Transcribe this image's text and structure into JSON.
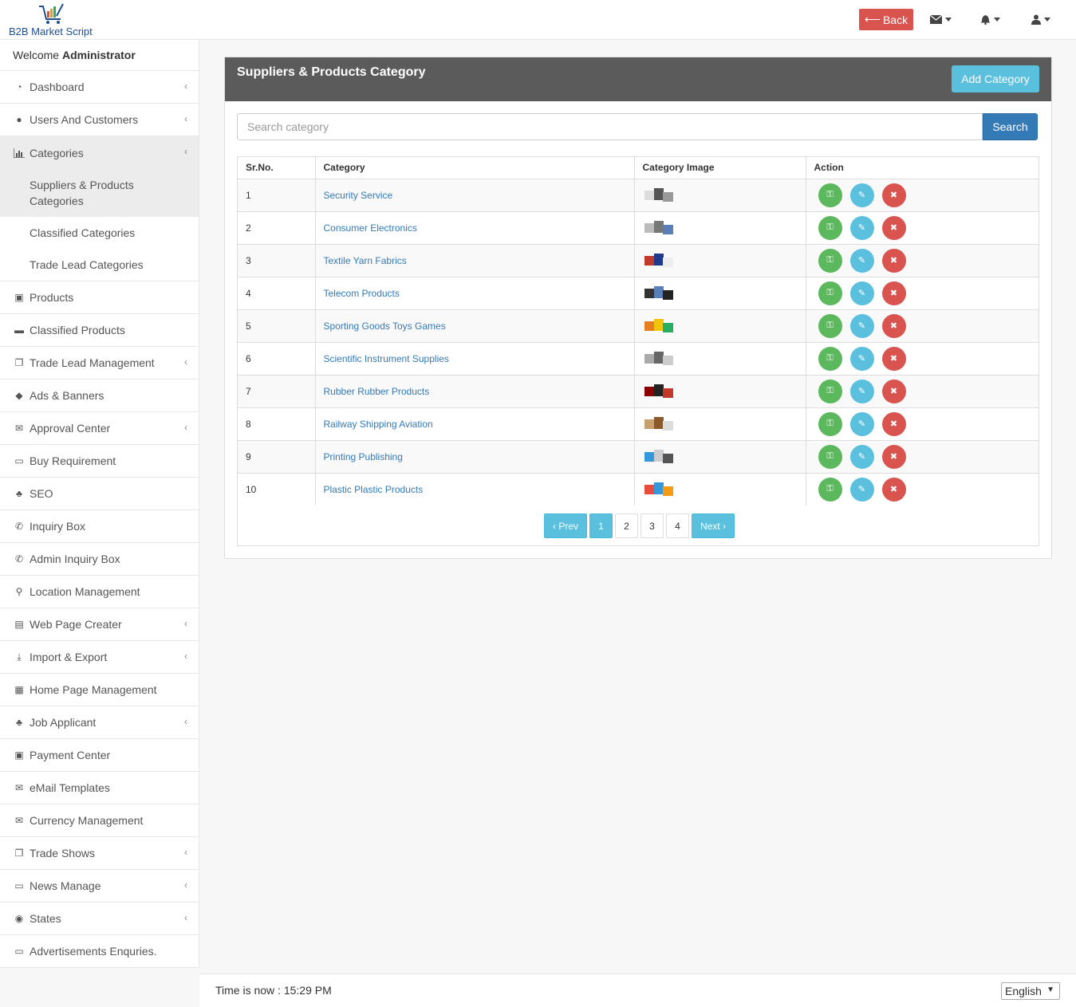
{
  "header": {
    "logo_text": "B2B Market Script",
    "back_label": "Back",
    "icons": [
      "envelope-icon",
      "bell-icon",
      "user-icon"
    ]
  },
  "sidebar": {
    "welcome_prefix": "Welcome",
    "welcome_user": "Administrator",
    "items_top": [
      {
        "label": "Dashboard",
        "icon": "dashboard-icon",
        "chevron": true
      },
      {
        "label": "Users And Customers",
        "icon": "user-icon",
        "chevron": true
      }
    ],
    "categories": {
      "label": "Categories",
      "icon": "bar-chart-icon",
      "sub": [
        "Suppliers & Products Categories",
        "Classified Categories",
        "Trade Lead Categories"
      ]
    },
    "items_bottom": [
      {
        "label": "Products",
        "icon": "briefcase-icon",
        "chevron": false
      },
      {
        "label": "Classified Products",
        "icon": "archive-icon",
        "chevron": false
      },
      {
        "label": "Trade Lead Management",
        "icon": "copy-icon",
        "chevron": true
      },
      {
        "label": "Ads & Banners",
        "icon": "tags-icon",
        "chevron": false
      },
      {
        "label": "Approval Center",
        "icon": "envelope-icon",
        "chevron": true
      },
      {
        "label": "Buy Requirement",
        "icon": "credit-card-icon",
        "chevron": false
      },
      {
        "label": "SEO",
        "icon": "sitemap-icon",
        "chevron": false
      },
      {
        "label": "Inquiry Box",
        "icon": "phone-icon",
        "chevron": false
      },
      {
        "label": "Admin Inquiry Box",
        "icon": "phone-icon",
        "chevron": false
      },
      {
        "label": "Location Management",
        "icon": "map-marker-icon",
        "chevron": false
      },
      {
        "label": "Web Page Creater",
        "icon": "file-icon",
        "chevron": true
      },
      {
        "label": "Import & Export",
        "icon": "download-icon",
        "chevron": true
      },
      {
        "label": "Home Page Management",
        "icon": "table-icon",
        "chevron": false
      },
      {
        "label": "Job Applicant",
        "icon": "sitemap-icon",
        "chevron": true
      },
      {
        "label": "Payment Center",
        "icon": "money-icon",
        "chevron": false
      },
      {
        "label": "eMail Templates",
        "icon": "envelope-icon",
        "chevron": false
      },
      {
        "label": "Currency Management",
        "icon": "envelope-icon",
        "chevron": false
      },
      {
        "label": "Trade Shows",
        "icon": "copy-icon",
        "chevron": true
      },
      {
        "label": "News Manage",
        "icon": "desktop-icon",
        "chevron": true
      },
      {
        "label": "States",
        "icon": "eye-icon",
        "chevron": true
      },
      {
        "label": "Advertisements Enquries.",
        "icon": "desktop-icon",
        "chevron": false
      }
    ]
  },
  "panel": {
    "title": "Suppliers & Products Category",
    "add_label": "Add Category",
    "search_placeholder": "Search category",
    "search_label": "Search"
  },
  "table": {
    "headers": [
      "Sr.No.",
      "Category",
      "Category Image",
      "Action"
    ],
    "rows": [
      {
        "no": "1",
        "category": "Security Service"
      },
      {
        "no": "2",
        "category": "Consumer Electronics"
      },
      {
        "no": "3",
        "category": "Textile Yarn Fabrics"
      },
      {
        "no": "4",
        "category": "Telecom Products"
      },
      {
        "no": "5",
        "category": "Sporting Goods Toys Games"
      },
      {
        "no": "6",
        "category": "Scientific Instrument Supplies"
      },
      {
        "no": "7",
        "category": "Rubber Rubber Products"
      },
      {
        "no": "8",
        "category": "Railway Shipping Aviation"
      },
      {
        "no": "9",
        "category": "Printing Publishing"
      },
      {
        "no": "10",
        "category": "Plastic Plastic Products"
      }
    ]
  },
  "pagination": {
    "prev": "‹ Prev",
    "pages": [
      "1",
      "2",
      "3",
      "4"
    ],
    "current": "1",
    "next": "Next ›"
  },
  "footer": {
    "time_text": "Time is now : 15:29 PM",
    "language": "English"
  },
  "colors": {
    "danger": "#d9534f",
    "info": "#5bc0de",
    "primary": "#337ab7",
    "success": "#5cb85c",
    "panel_head": "#5b5b5b"
  }
}
